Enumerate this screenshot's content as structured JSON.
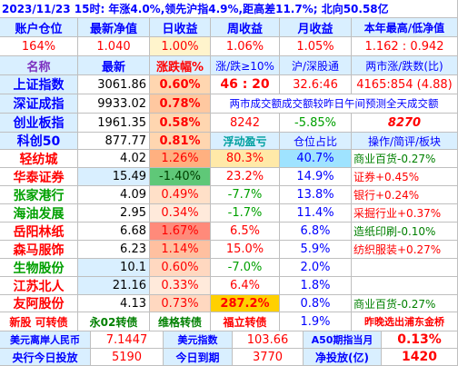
{
  "top_line": "2023/11/23  15时: 年涨4.0%,领先沪指4.9%,距高差11.7%; 北向50.58亿",
  "header1": [
    "账户仓位",
    "最新净值",
    "日收益",
    "周收益",
    "月收益",
    "本年最高/低净值"
  ],
  "values1": [
    "164%",
    "1.040",
    "1.00%",
    "1.06%",
    "1.05%",
    "1.162 : 0.942"
  ],
  "header2": [
    "名称",
    "最新",
    "涨跌幅%",
    "涨/跌≥10%",
    "沪/深股通",
    "两市涨/跌数(比)"
  ],
  "index_rows": [
    {
      "name": "上证指数",
      "latest": "3061.86",
      "chg": "0.60%",
      "c4": "46 : 20",
      "c5": "32.6:46",
      "c6": "4165:854 (4.88)"
    },
    {
      "name": "深证成指",
      "latest": "9933.02",
      "chg": "0.78%",
      "c4": "两市成交额成交额较昨日午间预测全天成交额",
      "c5": "",
      "c6": ""
    },
    {
      "name": "创业板指",
      "latest": "1961.35",
      "chg": "0.58%",
      "c4": "8242",
      "c5": "-5.85%",
      "c6": "8270"
    },
    {
      "name": "科创50",
      "latest": "877.77",
      "chg": "0.81%",
      "c4": "浮动盈亏",
      "c5": "仓位占比",
      "c6": "操作/简评/板块"
    }
  ],
  "stock_rows": [
    {
      "name": "轻纺城",
      "latest": "4.02",
      "chg": "1.26%",
      "pnl": "80.3%",
      "pos": "40.7%",
      "note": "商业百货-0.27%"
    },
    {
      "name": "华泰证券",
      "latest": "15.49",
      "chg": "-1.40%",
      "pnl": "23.2%",
      "pos": "14.9%",
      "note": "证券+0.45%"
    },
    {
      "name": "张家港行",
      "latest": "4.09",
      "chg": "0.49%",
      "pnl": "-7.7%",
      "pos": "13.8%",
      "note": "银行+0.24%"
    },
    {
      "name": "海油发展",
      "latest": "2.95",
      "chg": "0.34%",
      "pnl": "-1.7%",
      "pos": "11.4%",
      "note": "采掘行业+0.37%"
    },
    {
      "name": "岳阳林纸",
      "latest": "6.68",
      "chg": "1.67%",
      "pnl": "6.5%",
      "pos": "6.8%",
      "note": "造纸印刷-0.10%"
    },
    {
      "name": "森马服饰",
      "latest": "6.23",
      "chg": "1.14%",
      "pnl": "15.0%",
      "pos": "5.9%",
      "note": "纺织服装+0.27%"
    },
    {
      "name": "生物股份",
      "latest": "10.1",
      "chg": "0.60%",
      "pnl": "-7.0%",
      "pos": "2.0%",
      "note": ""
    },
    {
      "name": "江苏北人",
      "latest": "21.16",
      "chg": "0.33%",
      "pnl": "6.4%",
      "pos": "1.8%",
      "note": ""
    },
    {
      "name": "友阿股份",
      "latest": "4.13",
      "chg": "0.73%",
      "pnl": "287.2%",
      "pos": "0.8%",
      "note": "商业百货-0.27%"
    }
  ],
  "extra_row": {
    "c1": "新股 可转债",
    "c2": "永02转债",
    "c3": "维格转债",
    "c4": "福立转债",
    "c5": "1.9%",
    "c6": "昨晚选出浦东金桥"
  },
  "footer1": {
    "label1": "美元离岸人民币",
    "val1": "7.1447",
    "label2": "美元指数",
    "val2": "103.66",
    "label3": "A50期指当月",
    "val3": "0.13%"
  },
  "footer2": {
    "label1": "央行今日投放",
    "val1": "5190",
    "label2": "今日到期",
    "val2": "3770",
    "label3": "净投放(亿)",
    "val3": "1420"
  },
  "colors": {
    "header_bg": "#d9efff",
    "red": "#ff0000",
    "green": "#00a000",
    "blue": "#0000ff"
  }
}
